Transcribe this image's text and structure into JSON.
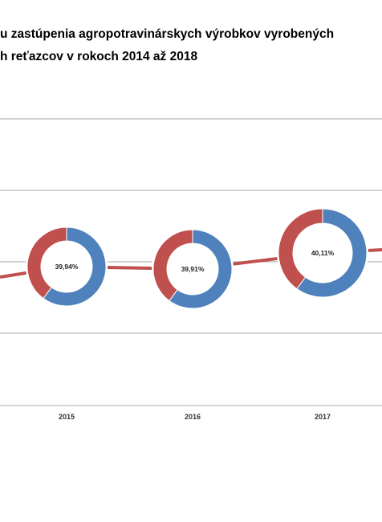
{
  "title": {
    "line1": "u zastúpenia agropotravinárskych výrobkov vyrobených",
    "line2": "h reťazcov v rokoch 2014 až 2018"
  },
  "colors": {
    "share": "#4f81bd",
    "other": "#c0504d",
    "line": "#c0504d",
    "grid": "#a6a6a6"
  },
  "chart_data": {
    "type": "line",
    "title": "",
    "categories": [
      "2015",
      "2016",
      "2017"
    ],
    "series": [
      {
        "values": [
          39.94,
          39.91,
          40.11
        ]
      }
    ],
    "labels": [
      "39,94%",
      "39,91%",
      "40,11%"
    ],
    "ylim": [
      39.5,
      40.5
    ],
    "grid": true,
    "marker": "donut"
  }
}
